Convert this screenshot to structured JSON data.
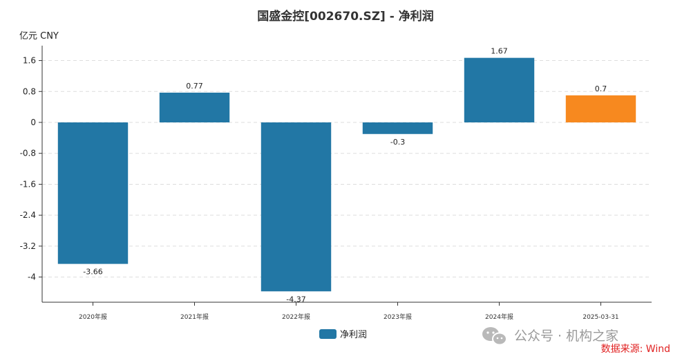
{
  "chart_data": {
    "type": "bar",
    "title": "国盛金控[002670.SZ] - 净利润",
    "unit_label": "亿元  CNY",
    "categories": [
      "2020年报",
      "2021年报",
      "2022年报",
      "2023年报",
      "2024年报",
      "2025-03-31"
    ],
    "series": [
      {
        "name": "净利润",
        "values": [
          -3.66,
          0.77,
          -4.37,
          -0.3,
          1.67,
          0.7
        ],
        "data_labels": [
          "-3.66",
          "0.77",
          "-4.37",
          "-0.3",
          "1.67",
          "0.7"
        ]
      }
    ],
    "ylim": [
      -4.8,
      2.0
    ],
    "y_ticks": [
      1.6,
      0.8,
      0,
      -0.8,
      -1.6,
      -2.4,
      -3.2,
      -4
    ],
    "y_tick_labels": [
      "1.6",
      "0.8",
      "0",
      "-0.8",
      "-1.6",
      "-2.4",
      "-3.2",
      "-4"
    ],
    "grid": "horizontal-dashed",
    "legend_position": "bottom-center",
    "colors": {
      "bar": "#2277a5",
      "highlight_bar": "#f7891f",
      "grid": "#dddddd",
      "axis": "#333333"
    },
    "highlight_index": 5
  },
  "watermark": {
    "text": "公众号 · 机构之家",
    "icon": "wechat-icon"
  },
  "source": {
    "text": "数据来源: Wind"
  }
}
